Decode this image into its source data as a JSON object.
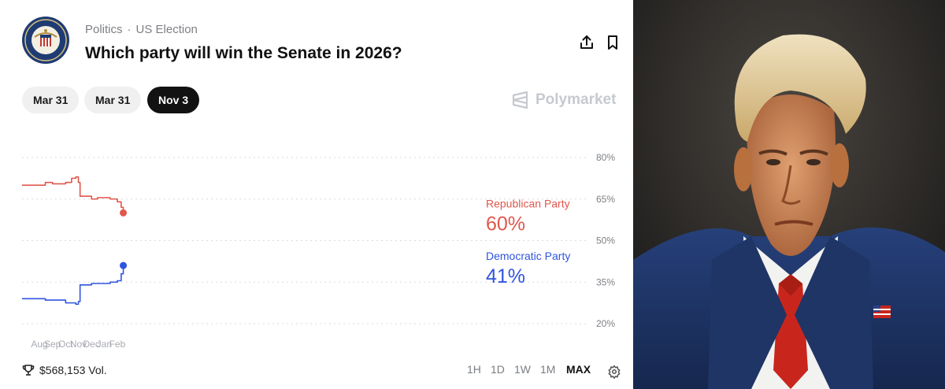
{
  "header": {
    "category": "Politics",
    "subcategory": "US Election",
    "title": "Which party will win the Senate in 2026?",
    "seal_text": "UNITED STATES SENATE"
  },
  "date_tabs": [
    {
      "label": "Mar 31",
      "active": false
    },
    {
      "label": "Mar 31",
      "active": false
    },
    {
      "label": "Nov 3",
      "active": true
    }
  ],
  "brand": "Polymarket",
  "footer": {
    "volume": "$568,153 Vol.",
    "ranges": [
      "1H",
      "1D",
      "1W",
      "1M",
      "MAX"
    ],
    "active_range": "MAX"
  },
  "colors": {
    "republican": "#e0574c",
    "democratic": "#2f54de",
    "active_tab": "#121212"
  },
  "icons": [
    "seal-icon",
    "share-icon",
    "bookmark-icon",
    "polymarket-logo-icon",
    "trophy-icon",
    "gear-icon"
  ],
  "chart_data": {
    "type": "line",
    "x_ticks": [
      "Aug",
      "Sep",
      "Oct",
      "Nov",
      "Dec",
      "Jan",
      "Feb"
    ],
    "y_ticks": [
      "80%",
      "65%",
      "50%",
      "35%",
      "20%"
    ],
    "ylim": [
      20,
      80
    ],
    "grid": true,
    "series": [
      {
        "name": "Republican Party",
        "final_label": "60%",
        "color": "#e0574c",
        "x": [
          "Aug 1",
          "Aug 15",
          "Sep 1",
          "Sep 15",
          "Oct 1",
          "Oct 15",
          "Oct 25",
          "Nov 1",
          "Nov 5",
          "Nov 15",
          "Dec 1",
          "Dec 15",
          "Jan 1",
          "Jan 15",
          "Feb 1",
          "Feb 10",
          "Feb 15"
        ],
        "values": [
          70,
          71,
          70.5,
          70.5,
          71,
          72.5,
          73,
          71,
          66,
          66,
          65,
          65.5,
          65.5,
          65,
          64,
          62,
          60
        ]
      },
      {
        "name": "Democratic Party",
        "final_label": "41%",
        "color": "#2f54de",
        "x": [
          "Aug 1",
          "Aug 15",
          "Sep 1",
          "Sep 15",
          "Oct 1",
          "Oct 15",
          "Oct 25",
          "Nov 1",
          "Nov 5",
          "Nov 15",
          "Dec 1",
          "Dec 15",
          "Jan 1",
          "Jan 15",
          "Feb 1",
          "Feb 10",
          "Feb 15"
        ],
        "values": [
          29,
          28.5,
          28.5,
          28.5,
          27.5,
          27.5,
          27,
          28,
          34,
          34,
          34.5,
          34.5,
          34.5,
          35,
          35.5,
          38,
          41
        ]
      }
    ]
  }
}
